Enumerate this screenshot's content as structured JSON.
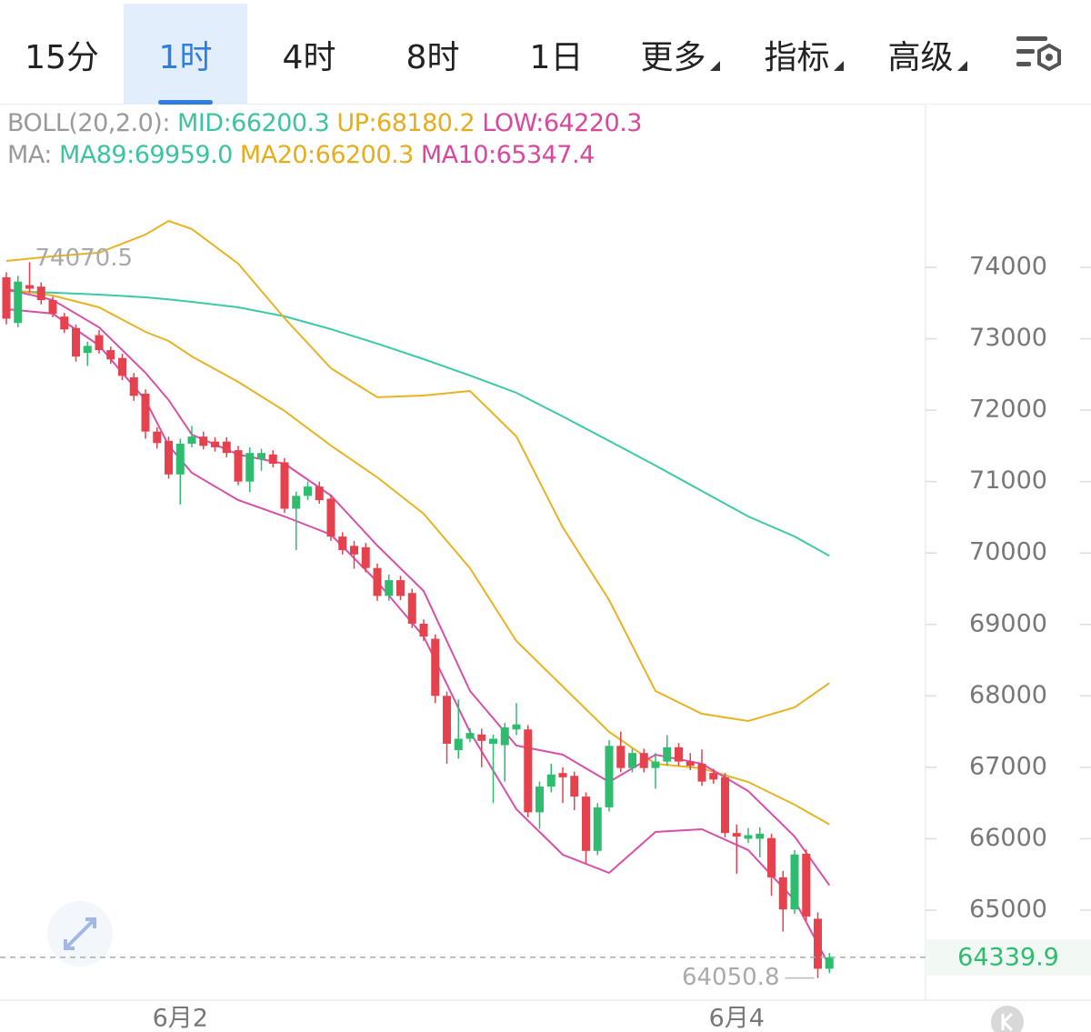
{
  "tabs": [
    {
      "label": "15分",
      "active": false,
      "dropdown": false
    },
    {
      "label": "1时",
      "active": true,
      "dropdown": false
    },
    {
      "label": "4时",
      "active": false,
      "dropdown": false
    },
    {
      "label": "8时",
      "active": false,
      "dropdown": false
    },
    {
      "label": "1日",
      "active": false,
      "dropdown": false
    },
    {
      "label": "更多",
      "active": false,
      "dropdown": true
    },
    {
      "label": "指标",
      "active": false,
      "dropdown": true
    },
    {
      "label": "高级",
      "active": false,
      "dropdown": true
    }
  ],
  "legend": [
    [
      {
        "text": "BOLL(20,2.0):",
        "color": "#9a9a9a"
      },
      {
        "text": " MID:66200.3",
        "color": "#3cc4a0"
      },
      {
        "text": " UP:68180.2",
        "color": "#e6ae1e"
      },
      {
        "text": " LOW:64220.3",
        "color": "#d9479f"
      }
    ],
    [
      {
        "text": "MA:",
        "color": "#9a9a9a"
      },
      {
        "text": " MA89:69959.0",
        "color": "#3cc4a0"
      },
      {
        "text": " MA20:66200.3",
        "color": "#e6ae1e"
      },
      {
        "text": " MA10:65347.4",
        "color": "#d9479f"
      }
    ]
  ],
  "chart_data": {
    "type": "candlestick",
    "categories": [
      null,
      null,
      null,
      null,
      null,
      null,
      null,
      null,
      null,
      null,
      null,
      null,
      null,
      null,
      null,
      "6月2",
      null,
      null,
      null,
      null,
      null,
      null,
      null,
      null,
      null,
      null,
      null,
      null,
      null,
      null,
      null,
      null,
      null,
      null,
      null,
      null,
      null,
      null,
      null,
      null,
      null,
      null,
      null,
      null,
      null,
      null,
      null,
      null,
      null,
      null,
      null,
      null,
      null,
      null,
      null,
      null,
      null,
      null,
      null,
      null,
      null,
      null,
      null,
      "6月4",
      null,
      null,
      null,
      null,
      null,
      null,
      null,
      null
    ],
    "open": [
      73860,
      73220,
      73750,
      73730,
      73540,
      73310,
      73150,
      72800,
      73050,
      72840,
      72730,
      72460,
      72230,
      71700,
      71570,
      71100,
      71530,
      71630,
      71560,
      71560,
      71440,
      71000,
      71310,
      71380,
      71270,
      70620,
      70800,
      70930,
      70760,
      70230,
      70100,
      70080,
      69790,
      69400,
      69620,
      69440,
      69010,
      68800,
      68000,
      67240,
      67400,
      67460,
      67330,
      67310,
      67530,
      67530,
      66370,
      66730,
      66920,
      66880,
      66590,
      65830,
      66440,
      67300,
      66990,
      67200,
      66990,
      67080,
      67280,
      67080,
      67050,
      66920,
      66860,
      66080,
      66000,
      66000,
      66010,
      65460,
      65010,
      65790,
      64880,
      64180
    ],
    "high": [
      73930,
      73880,
      74070.5,
      73790,
      73590,
      73360,
      73200,
      72960,
      73120,
      72890,
      72790,
      72520,
      72290,
      71760,
      71630,
      71600,
      71780,
      71700,
      71620,
      71620,
      71500,
      71480,
      71460,
      71440,
      71330,
      70860,
      71000,
      71000,
      70820,
      70290,
      70170,
      70140,
      69850,
      69700,
      69680,
      69500,
      69070,
      68860,
      68060,
      67950,
      67550,
      67540,
      67460,
      67620,
      67900,
      67590,
      66800,
      67050,
      67000,
      66940,
      66650,
      66500,
      67380,
      67500,
      67260,
      67260,
      67200,
      67450,
      67340,
      67200,
      67250,
      66980,
      66920,
      66200,
      66150,
      66160,
      66070,
      65550,
      65840,
      65850,
      64970,
      64400
    ],
    "low": [
      73200,
      73160,
      73640,
      73480,
      73300,
      73080,
      72680,
      72620,
      72790,
      72650,
      72420,
      72130,
      71600,
      71460,
      71040,
      70680,
      71480,
      71450,
      71420,
      71340,
      70950,
      70850,
      71150,
      71200,
      70560,
      70040,
      70740,
      70690,
      70170,
      69980,
      69780,
      69730,
      69330,
      69330,
      69340,
      68950,
      68770,
      67900,
      67050,
      67120,
      67350,
      67000,
      66500,
      66800,
      67450,
      66300,
      66140,
      66650,
      66500,
      66400,
      65650,
      65770,
      66380,
      66930,
      66930,
      66930,
      66700,
      67020,
      67020,
      66960,
      66740,
      66770,
      66020,
      65510,
      65940,
      65740,
      65200,
      64700,
      64950,
      64850,
      64050.8,
      64120
    ],
    "close": [
      73280,
      73800,
      73700,
      73540,
      73350,
      73130,
      72750,
      72900,
      72840,
      72710,
      72480,
      72200,
      71700,
      71540,
      71100,
      71530,
      71630,
      71500,
      71480,
      71400,
      71000,
      71400,
      71400,
      71250,
      70620,
      70800,
      70930,
      70740,
      70230,
      70040,
      69980,
      69790,
      69400,
      69620,
      69400,
      69010,
      68830,
      68000,
      67330,
      67400,
      67480,
      67370,
      67400,
      67560,
      67600,
      66370,
      66730,
      66900,
      66860,
      66590,
      65830,
      66440,
      67300,
      66990,
      67200,
      66990,
      67080,
      67280,
      67080,
      67020,
      66800,
      66830,
      66080,
      66030,
      66050,
      66070,
      65460,
      65010,
      65780,
      64910,
      64180,
      64339.9
    ],
    "up_color": "#2ebd6e",
    "down_color": "#e5424e",
    "series": [
      {
        "name": "MA89",
        "color": "#3cc9a5",
        "x": [
          0,
          4,
          8,
          12,
          14,
          16,
          20,
          24,
          28,
          32,
          36,
          40,
          44,
          48,
          52,
          56,
          60,
          64,
          68,
          71
        ],
        "values": [
          73669,
          73644,
          73618,
          73580,
          73550,
          73516,
          73440,
          73313,
          73134,
          72931,
          72714,
          72485,
          72243,
          71912,
          71569,
          71225,
          70868,
          70512,
          70232,
          69959
        ]
      },
      {
        "name": "UP",
        "color": "#e6b422",
        "x": [
          0,
          4,
          8,
          12,
          14,
          16,
          20,
          24,
          28,
          32,
          36,
          40,
          44,
          48,
          52,
          56,
          60,
          64,
          68,
          71
        ],
        "values": [
          74089,
          74153,
          74204,
          74458,
          74649,
          74535,
          74051,
          73287,
          72587,
          72180,
          72205,
          72269,
          71632,
          70359,
          69341,
          68068,
          67749,
          67648,
          67839,
          68180.2
        ]
      },
      {
        "name": "MID",
        "color": "#e6b422",
        "x": [
          0,
          4,
          8,
          12,
          14,
          16,
          20,
          24,
          28,
          32,
          36,
          40,
          44,
          48,
          52,
          56,
          60,
          64,
          68,
          71
        ],
        "values": [
          73694,
          73605,
          73440,
          73096,
          72969,
          72752,
          72396,
          71989,
          71505,
          71059,
          70550,
          69786,
          68768,
          68132,
          67495,
          67050,
          66986,
          66795,
          66477,
          66200.3
        ]
      },
      {
        "name": "LOW",
        "color": "#d74fa8",
        "x": [
          0,
          4,
          8,
          12,
          14,
          16,
          20,
          24,
          28,
          32,
          36,
          40,
          44,
          48,
          52,
          56,
          60,
          64,
          68,
          71
        ],
        "values": [
          73414,
          73351,
          72905,
          72141,
          71505,
          71123,
          70741,
          70512,
          70257,
          69595,
          68832,
          67495,
          66413,
          65777,
          65522,
          66095,
          66133,
          65840,
          65140,
          64220.3
        ]
      },
      {
        "name": "MA10",
        "color": "#d74fa8",
        "x": [
          0,
          4,
          8,
          12,
          14,
          16,
          20,
          24,
          28,
          32,
          36,
          40,
          44,
          48,
          52,
          56,
          60,
          64,
          68,
          71
        ],
        "values": [
          73694,
          73542,
          73160,
          72523,
          72141,
          71658,
          71378,
          71250,
          70805,
          70105,
          69468,
          68068,
          67304,
          67177,
          66795,
          67177,
          67050,
          66668,
          66031,
          65347.4
        ]
      }
    ],
    "ylim": [
      63740,
      76278
    ],
    "yticks": [
      65000,
      66000,
      67000,
      68000,
      69000,
      70000,
      71000,
      72000,
      73000,
      74000
    ],
    "high_label": "74070.5",
    "low_label": "64050.8",
    "last_price_label": "64339.9"
  }
}
